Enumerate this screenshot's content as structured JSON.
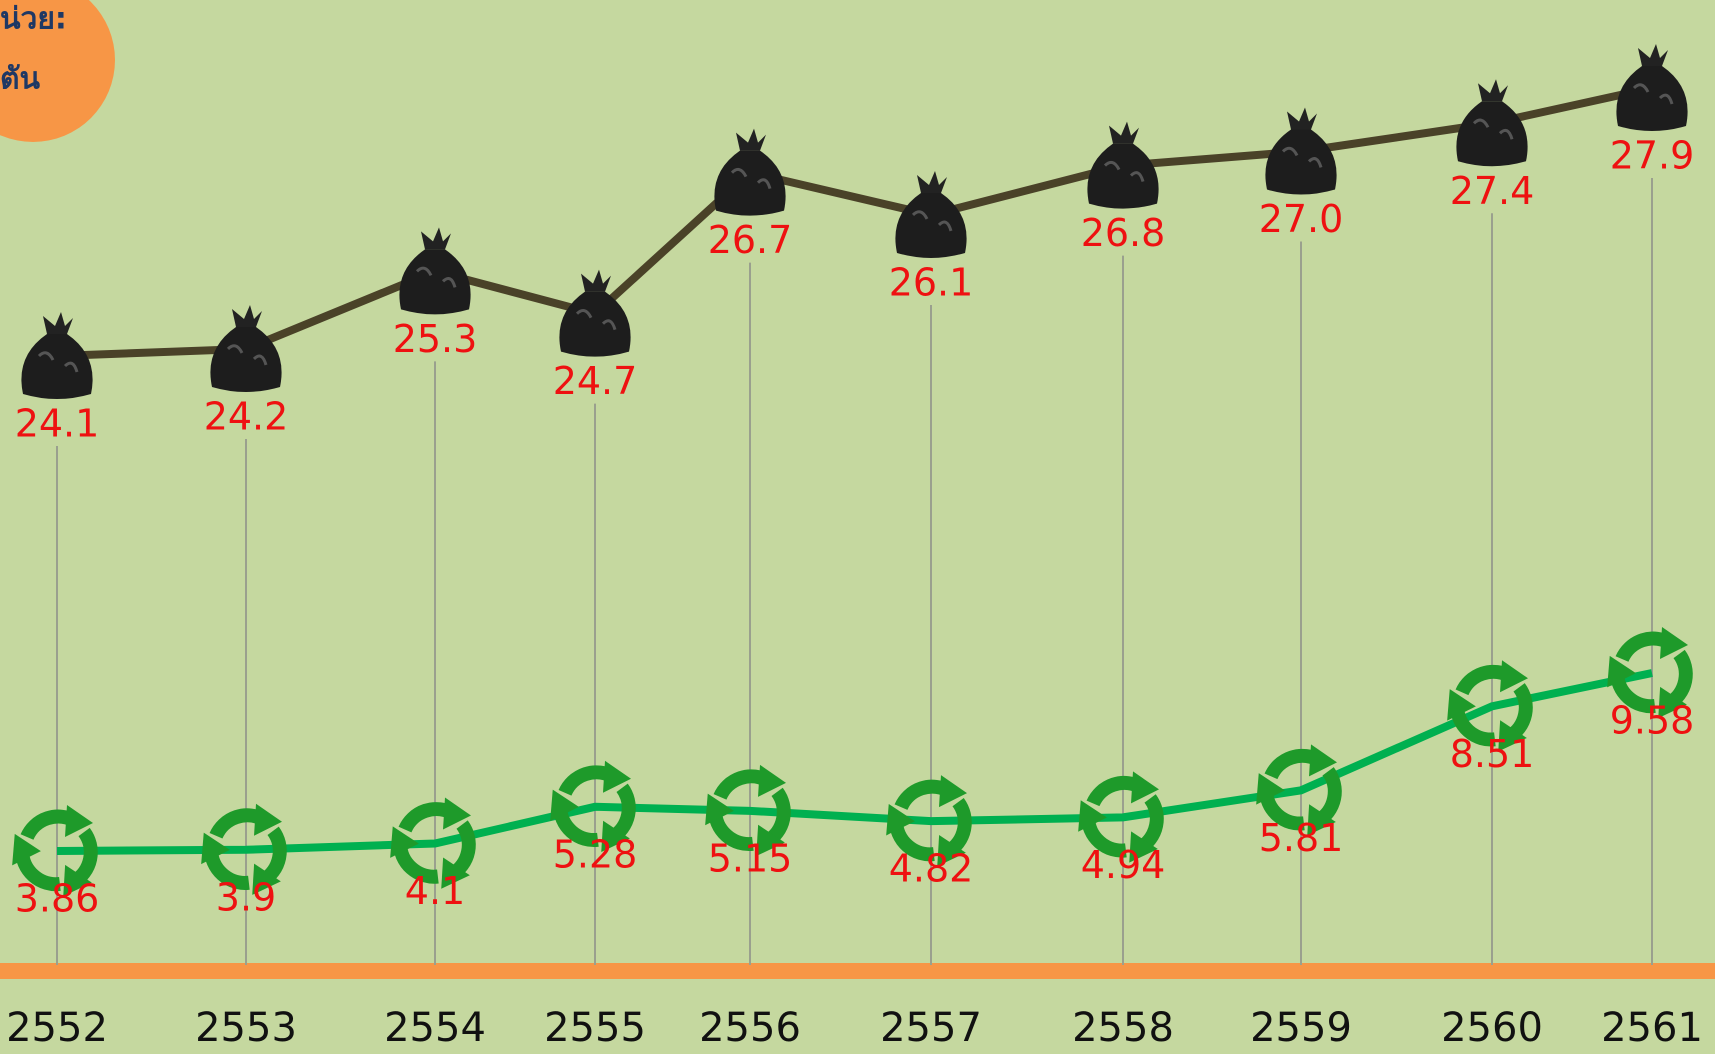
{
  "chart_data": {
    "type": "line",
    "unit_label": [
      "น่วย:",
      "ตัน"
    ],
    "categories": [
      "2552",
      "2553",
      "2554",
      "2555",
      "2556",
      "2557",
      "2558",
      "2559",
      "2560",
      "2561"
    ],
    "series": [
      {
        "color": "#4a4228",
        "values": [
          24.1,
          24.2,
          25.3,
          24.7,
          26.7,
          26.1,
          26.8,
          27.0,
          27.4,
          27.9
        ],
        "value_labels": [
          "24.1",
          "24.2",
          "25.3",
          "24.7",
          "26.7",
          "26.1",
          "26.8",
          "27.0",
          "27.4",
          "27.9"
        ]
      },
      {
        "color": "#00b050",
        "values": [
          3.86,
          3.9,
          4.1,
          5.28,
          5.15,
          4.82,
          4.94,
          5.81,
          8.51,
          9.58
        ],
        "value_labels": [
          "3.86",
          "3.9",
          "4.1",
          "5.28",
          "5.15",
          "4.82",
          "4.94",
          "5.81",
          "8.51",
          "9.58"
        ]
      }
    ]
  }
}
